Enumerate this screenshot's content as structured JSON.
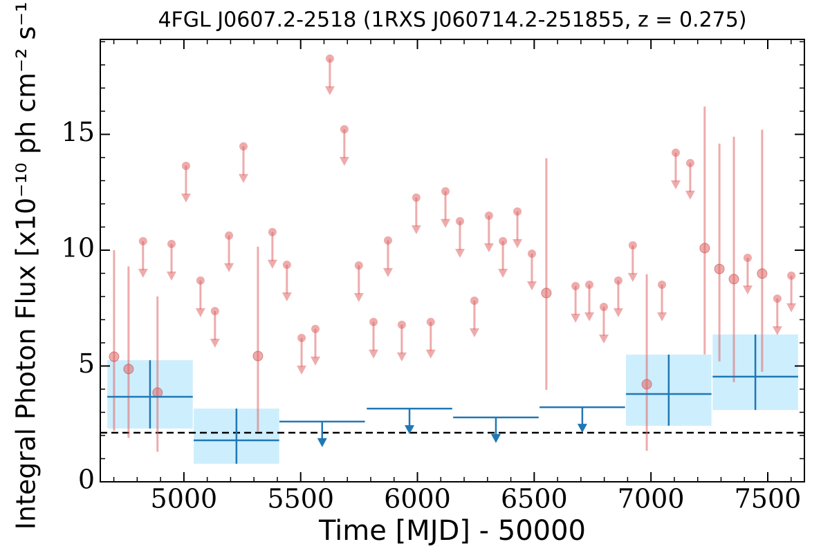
{
  "chart_data": {
    "type": "scatter",
    "title": "4FGL J0607.2-2518 (1RXS J060714.2-251855, z = 0.275)",
    "xlabel": "Time [MJD] - 50000",
    "ylabel": "Integral Photon Flux [x10⁻¹⁰ ph cm⁻² s⁻¹]",
    "xlim": [
      4642,
      7657
    ],
    "ylim": [
      0,
      19.1
    ],
    "xticks": [
      5000,
      5500,
      6000,
      6500,
      7000,
      7500
    ],
    "yticks": [
      0,
      5,
      10,
      15
    ],
    "xticks_minor": [
      4700,
      4800,
      4900,
      5100,
      5200,
      5300,
      5400,
      5600,
      5700,
      5800,
      5900,
      6100,
      6200,
      6300,
      6400,
      6600,
      6700,
      6800,
      6900,
      7100,
      7200,
      7300,
      7400,
      7600
    ],
    "yticks_minor": [
      1,
      2,
      3,
      4,
      6,
      7,
      8,
      9,
      11,
      12,
      13,
      14,
      16,
      17,
      18,
      19
    ],
    "monthly": {
      "color": "#e06666",
      "detections": {
        "x": [
          4701,
          4763,
          4887,
          5317,
          6552,
          6982,
          7230,
          7293,
          7355,
          7476
        ],
        "y": [
          5.4,
          4.87,
          3.85,
          5.43,
          8.15,
          4.21,
          10.09,
          9.19,
          8.75,
          8.99
        ],
        "ylow": [
          2.2,
          1.9,
          1.3,
          2.15,
          3.97,
          1.34,
          5.5,
          5.2,
          4.3,
          4.75
        ],
        "yhigh": [
          10.0,
          9.3,
          8.0,
          10.15,
          13.97,
          8.96,
          16.2,
          14.6,
          14.9,
          15.2
        ]
      },
      "upper_limits": {
        "x": [
          4825,
          4947,
          5009,
          5071,
          5133,
          5193,
          5255,
          5379,
          5441,
          5504,
          5563,
          5625,
          5687,
          5749,
          5812,
          5874,
          5933,
          5995,
          6057,
          6120,
          6182,
          6244,
          6306,
          6366,
          6428,
          6490,
          6677,
          6736,
          6798,
          6860,
          6922,
          7047,
          7106,
          7168,
          7414,
          7541,
          7601
        ],
        "values": [
          10.39,
          10.27,
          13.64,
          8.69,
          7.37,
          10.63,
          14.48,
          10.78,
          9.37,
          6.21,
          6.6,
          18.27,
          15.22,
          9.34,
          6.9,
          10.42,
          6.78,
          12.27,
          6.9,
          12.54,
          11.25,
          7.82,
          11.49,
          10.39,
          11.67,
          9.85,
          8.45,
          8.51,
          7.55,
          8.69,
          10.21,
          8.51,
          14.21,
          13.76,
          9.67,
          7.91,
          8.9
        ]
      }
    },
    "yearly": {
      "color": "#1f77b4",
      "box_color": "#cdeefd",
      "detections": {
        "x": [
          4855,
          5225,
          7076,
          7447
        ],
        "xerr": [
          183,
          183,
          183,
          183
        ],
        "y": [
          3.67,
          1.79,
          3.79,
          4.54
        ],
        "ylow": [
          2.3,
          0.78,
          2.42,
          3.1
        ],
        "yhigh": [
          5.25,
          3.16,
          5.49,
          6.36
        ]
      },
      "upper_limits": {
        "x": [
          5592,
          5966,
          6336,
          6706
        ],
        "xerr": [
          183,
          183,
          183,
          183
        ],
        "values": [
          2.6,
          3.16,
          2.78,
          3.22
        ]
      }
    },
    "reference_line": {
      "value": 2.12,
      "color": "#000000",
      "style": "dashed"
    }
  }
}
